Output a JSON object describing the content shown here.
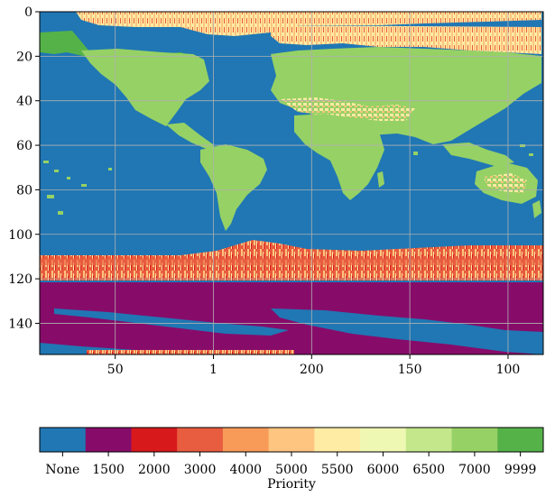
{
  "chart_data": {
    "type": "heatmap",
    "title": "",
    "xlabel": "",
    "ylabel": "",
    "y_ticks": [
      "0",
      "20",
      "40",
      "60",
      "80",
      "100",
      "120",
      "140"
    ],
    "y_tick_values": [
      0,
      20,
      40,
      60,
      80,
      100,
      120,
      140
    ],
    "ylim": [
      0,
      154
    ],
    "y_inverted": true,
    "x_ticks": [
      "50",
      "1",
      "200",
      "150",
      "100"
    ],
    "grid": true,
    "colorbar": {
      "label": "Priority",
      "categories": [
        "None",
        "1500",
        "2000",
        "3000",
        "4000",
        "5000",
        "5500",
        "6000",
        "6500",
        "7000",
        "9999"
      ],
      "colors": [
        "#2077b4",
        "#870c6a",
        "#d7191c",
        "#e85c3f",
        "#f89b59",
        "#fdc57f",
        "#feeba4",
        "#eef8b3",
        "#c3e78a",
        "#96d165",
        "#55b249"
      ]
    },
    "zones": [
      {
        "category": "None",
        "description": "ocean"
      },
      {
        "category": "7000",
        "description": "land masses"
      },
      {
        "category": "9999",
        "description": "North America / Greenland"
      },
      {
        "category": "5500",
        "description": "arctic band and desert areas"
      },
      {
        "category": "3000",
        "description": "southern ocean ice band, rows ~105-122"
      },
      {
        "category": "1500",
        "description": "antarctic band, rows ~122-154"
      }
    ]
  }
}
